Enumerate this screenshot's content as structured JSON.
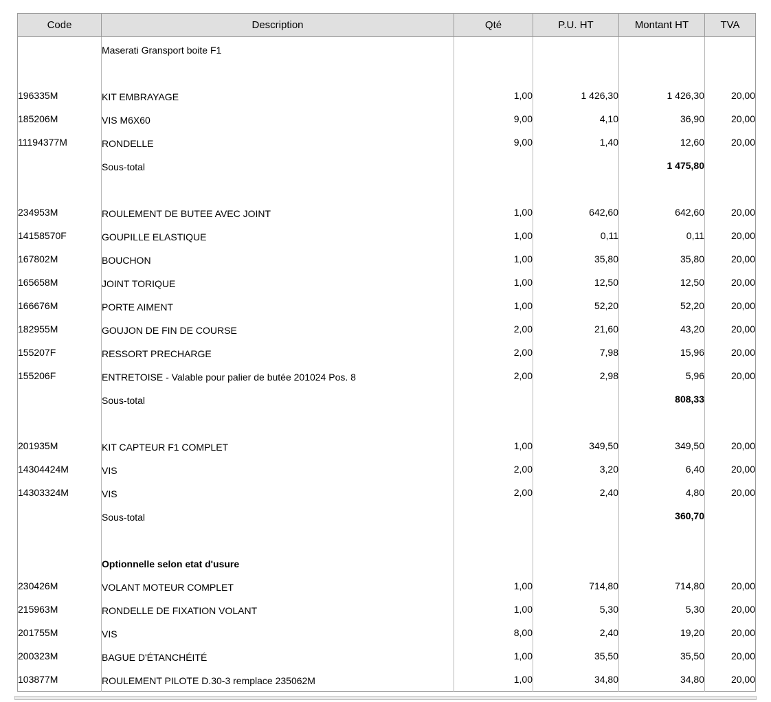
{
  "colors": {
    "header_bg": "#e0e0e0",
    "outer_border": "#9b9b9b",
    "grid_line": "#b7b7b7",
    "separator_band": "#ebebeb",
    "text": "#000000"
  },
  "table": {
    "columns": [
      "Code",
      "Description",
      "Qté",
      "P.U. HT",
      "Montant HT",
      "TVA"
    ],
    "subtotal_label": "Sous-total",
    "rows": [
      {
        "type": "note",
        "code": "",
        "description": "Maserati Gransport boite F1",
        "qty": "",
        "unit_price": "",
        "amount": "",
        "vat": ""
      },
      {
        "type": "blank"
      },
      {
        "type": "item",
        "code": "196335M",
        "description": "KIT EMBRAYAGE",
        "qty": "1,00",
        "unit_price": "1 426,30",
        "amount": "1 426,30",
        "vat": "20,00"
      },
      {
        "type": "item",
        "code": "185206M",
        "description": "VIS M6X60",
        "qty": "9,00",
        "unit_price": "4,10",
        "amount": "36,90",
        "vat": "20,00"
      },
      {
        "type": "item",
        "code": "11194377M",
        "description": "RONDELLE",
        "qty": "9,00",
        "unit_price": "1,40",
        "amount": "12,60",
        "vat": "20,00"
      },
      {
        "type": "subtotal",
        "code": "",
        "description": "Sous-total",
        "qty": "",
        "unit_price": "",
        "amount": "1 475,80",
        "vat": ""
      },
      {
        "type": "blank"
      },
      {
        "type": "item",
        "code": "234953M",
        "description": "ROULEMENT DE BUTEE AVEC JOINT",
        "qty": "1,00",
        "unit_price": "642,60",
        "amount": "642,60",
        "vat": "20,00"
      },
      {
        "type": "item",
        "code": "14158570F",
        "description": "GOUPILLE ELASTIQUE",
        "qty": "1,00",
        "unit_price": "0,11",
        "amount": "0,11",
        "vat": "20,00"
      },
      {
        "type": "item",
        "code": "167802M",
        "description": "BOUCHON",
        "qty": "1,00",
        "unit_price": "35,80",
        "amount": "35,80",
        "vat": "20,00"
      },
      {
        "type": "item",
        "code": "165658M",
        "description": "JOINT TORIQUE",
        "qty": "1,00",
        "unit_price": "12,50",
        "amount": "12,50",
        "vat": "20,00"
      },
      {
        "type": "item",
        "code": "166676M",
        "description": "PORTE AIMENT",
        "qty": "1,00",
        "unit_price": "52,20",
        "amount": "52,20",
        "vat": "20,00"
      },
      {
        "type": "item",
        "code": "182955M",
        "description": "GOUJON DE FIN DE COURSE",
        "qty": "2,00",
        "unit_price": "21,60",
        "amount": "43,20",
        "vat": "20,00"
      },
      {
        "type": "item",
        "code": "155207F",
        "description": "RESSORT PRECHARGE",
        "qty": "2,00",
        "unit_price": "7,98",
        "amount": "15,96",
        "vat": "20,00"
      },
      {
        "type": "item",
        "code": "155206F",
        "description": "ENTRETOISE - Valable pour palier de butée 201024 Pos. 8",
        "qty": "2,00",
        "unit_price": "2,98",
        "amount": "5,96",
        "vat": "20,00"
      },
      {
        "type": "subtotal",
        "code": "",
        "description": "Sous-total",
        "qty": "",
        "unit_price": "",
        "amount": "808,33",
        "vat": ""
      },
      {
        "type": "blank"
      },
      {
        "type": "item",
        "code": "201935M",
        "description": "KIT CAPTEUR F1 COMPLET",
        "qty": "1,00",
        "unit_price": "349,50",
        "amount": "349,50",
        "vat": "20,00"
      },
      {
        "type": "item",
        "code": "14304424M",
        "description": "VIS",
        "qty": "2,00",
        "unit_price": "3,20",
        "amount": "6,40",
        "vat": "20,00"
      },
      {
        "type": "item",
        "code": "14303324M",
        "description": "VIS",
        "qty": "2,00",
        "unit_price": "2,40",
        "amount": "4,80",
        "vat": "20,00"
      },
      {
        "type": "subtotal",
        "code": "",
        "description": "Sous-total",
        "qty": "",
        "unit_price": "",
        "amount": "360,70",
        "vat": ""
      },
      {
        "type": "blank"
      },
      {
        "type": "section",
        "code": "",
        "description": "Optionnelle selon etat d'usure",
        "qty": "",
        "unit_price": "",
        "amount": "",
        "vat": ""
      },
      {
        "type": "item",
        "code": "230426M",
        "description": "VOLANT MOTEUR COMPLET",
        "qty": "1,00",
        "unit_price": "714,80",
        "amount": "714,80",
        "vat": "20,00"
      },
      {
        "type": "item",
        "code": "215963M",
        "description": "RONDELLE DE FIXATION VOLANT",
        "qty": "1,00",
        "unit_price": "5,30",
        "amount": "5,30",
        "vat": "20,00"
      },
      {
        "type": "item",
        "code": "201755M",
        "description": "VIS",
        "qty": "8,00",
        "unit_price": "2,40",
        "amount": "19,20",
        "vat": "20,00"
      },
      {
        "type": "item",
        "code": "200323M",
        "description": "BAGUE D'ÉTANCHÉITÉ",
        "qty": "1,00",
        "unit_price": "35,50",
        "amount": "35,50",
        "vat": "20,00"
      },
      {
        "type": "item",
        "code": "103877M",
        "description": "ROULEMENT PILOTE D.30-3 remplace 235062M",
        "qty": "1,00",
        "unit_price": "34,80",
        "amount": "34,80",
        "vat": "20,00"
      }
    ]
  }
}
